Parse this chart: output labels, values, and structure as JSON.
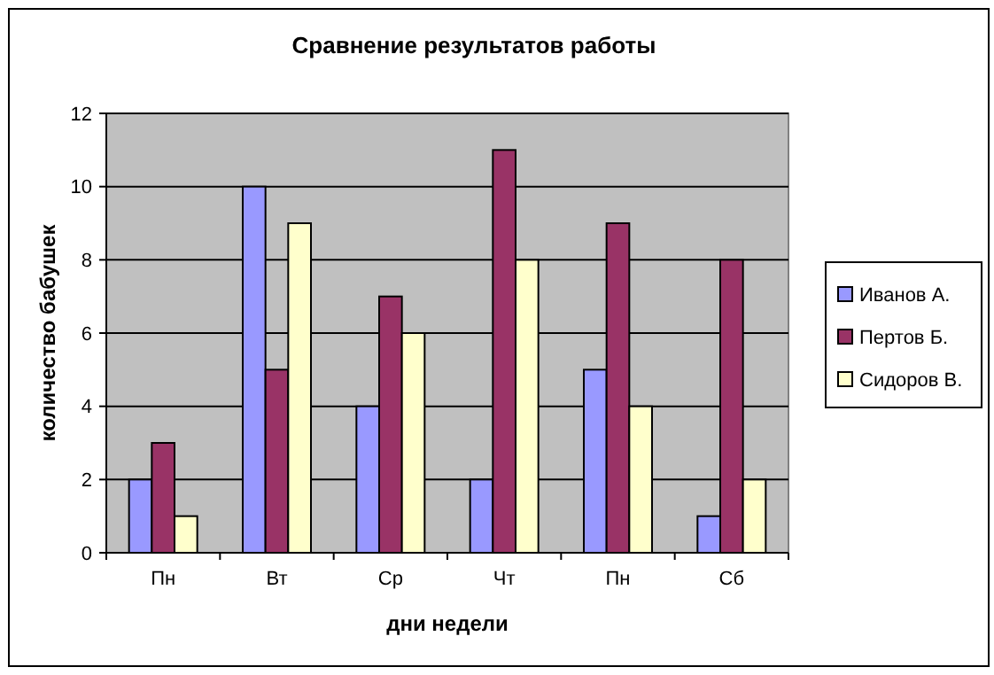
{
  "chart_data": {
    "type": "bar",
    "title": "Сравнение результатов работы",
    "xlabel": "дни недели",
    "ylabel": "количество бабушек",
    "categories": [
      "Пн",
      "Вт",
      "Ср",
      "Чт",
      "Пн",
      "Сб"
    ],
    "series": [
      {
        "name": "Иванов А.",
        "color": "#9999ff",
        "values": [
          2,
          10,
          4,
          2,
          5,
          1
        ]
      },
      {
        "name": "Пертов Б.",
        "color": "#993366",
        "values": [
          3,
          5,
          7,
          11,
          9,
          8
        ]
      },
      {
        "name": "Сидоров В.",
        "color": "#ffffcc",
        "values": [
          1,
          9,
          6,
          8,
          4,
          2
        ]
      }
    ],
    "ylim": [
      0,
      12
    ],
    "yticks": [
      0,
      2,
      4,
      6,
      8,
      10,
      12
    ],
    "grid": "y",
    "legend": "right"
  }
}
